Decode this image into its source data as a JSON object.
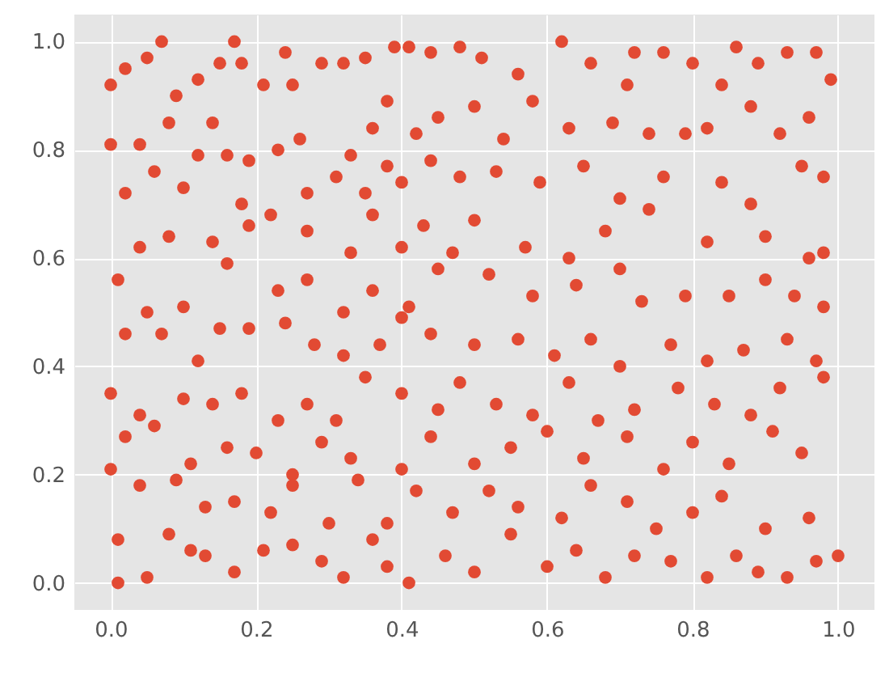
{
  "chart_data": {
    "type": "scatter",
    "color": "#e24a33",
    "marker": "circle",
    "grid": true,
    "xlim": [
      -0.05,
      1.05
    ],
    "xticks": [
      {
        "value": 0,
        "label": "0.0"
      },
      {
        "value": 0.2,
        "label": "0.2"
      },
      {
        "value": 0.4,
        "label": "0.4"
      },
      {
        "value": 0.6,
        "label": "0.6"
      },
      {
        "value": 0.8,
        "label": "0.8"
      },
      {
        "value": 1,
        "label": "1.0"
      }
    ],
    "ylim": [
      -0.05,
      1.05
    ],
    "yticks": [
      {
        "value": 0,
        "label": "0.0"
      },
      {
        "value": 0.2,
        "label": "0.2"
      },
      {
        "value": 0.4,
        "label": "0.4"
      },
      {
        "value": 0.6,
        "label": "0.6"
      },
      {
        "value": 0.8,
        "label": "0.8"
      },
      {
        "value": 1,
        "label": "1.0"
      }
    ],
    "x": [
      0.0,
      0.02,
      0.05,
      0.07,
      0.09,
      0.12,
      0.15,
      0.17,
      0.18,
      0.21,
      0.24,
      0.25,
      0.29,
      0.32,
      0.35,
      0.39,
      0.41,
      0.44,
      0.48,
      0.51,
      0.56,
      0.62,
      0.66,
      0.72,
      0.76,
      0.8,
      0.86,
      0.89,
      0.93,
      0.97,
      0.99,
      0.84,
      0.71,
      0.0,
      0.04,
      0.08,
      0.12,
      0.14,
      0.16,
      0.19,
      0.23,
      0.26,
      0.33,
      0.36,
      0.38,
      0.42,
      0.45,
      0.5,
      0.54,
      0.58,
      0.63,
      0.69,
      0.74,
      0.79,
      0.82,
      0.88,
      0.92,
      0.96,
      0.02,
      0.06,
      0.1,
      0.18,
      0.22,
      0.27,
      0.31,
      0.35,
      0.38,
      0.4,
      0.44,
      0.48,
      0.53,
      0.59,
      0.65,
      0.7,
      0.76,
      0.84,
      0.88,
      0.95,
      0.98,
      0.04,
      0.08,
      0.14,
      0.19,
      0.27,
      0.33,
      0.36,
      0.4,
      0.43,
      0.47,
      0.5,
      0.57,
      0.63,
      0.68,
      0.74,
      0.82,
      0.9,
      0.96,
      0.98,
      0.01,
      0.05,
      0.1,
      0.16,
      0.23,
      0.27,
      0.32,
      0.36,
      0.41,
      0.45,
      0.52,
      0.58,
      0.64,
      0.7,
      0.73,
      0.79,
      0.85,
      0.9,
      0.94,
      0.98,
      0.02,
      0.07,
      0.12,
      0.15,
      0.19,
      0.24,
      0.28,
      0.32,
      0.37,
      0.4,
      0.44,
      0.5,
      0.56,
      0.61,
      0.66,
      0.7,
      0.77,
      0.82,
      0.87,
      0.93,
      0.97,
      0.0,
      0.04,
      0.1,
      0.14,
      0.18,
      0.23,
      0.27,
      0.31,
      0.35,
      0.4,
      0.45,
      0.48,
      0.53,
      0.58,
      0.63,
      0.67,
      0.72,
      0.78,
      0.83,
      0.88,
      0.92,
      0.98,
      0.02,
      0.06,
      0.11,
      0.16,
      0.2,
      0.25,
      0.29,
      0.33,
      0.4,
      0.44,
      0.5,
      0.55,
      0.6,
      0.65,
      0.71,
      0.76,
      0.8,
      0.85,
      0.91,
      0.95,
      0.0,
      0.04,
      0.09,
      0.13,
      0.17,
      0.22,
      0.25,
      0.3,
      0.34,
      0.38,
      0.42,
      0.47,
      0.52,
      0.56,
      0.62,
      0.66,
      0.71,
      0.75,
      0.8,
      0.84,
      0.9,
      0.96,
      0.01,
      0.01,
      0.05,
      0.08,
      0.11,
      0.13,
      0.17,
      0.21,
      0.25,
      0.29,
      0.32,
      0.36,
      0.38,
      0.41,
      0.46,
      0.5,
      0.55,
      0.6,
      0.64,
      0.68,
      0.72,
      0.77,
      0.82,
      0.86,
      0.89,
      0.93,
      0.97,
      1.0
    ],
    "values": [
      0.92,
      0.95,
      0.97,
      1.0,
      0.9,
      0.93,
      0.96,
      1.0,
      0.96,
      0.92,
      0.98,
      0.92,
      0.96,
      0.96,
      0.97,
      0.99,
      0.99,
      0.98,
      0.99,
      0.97,
      0.94,
      1.0,
      0.96,
      0.98,
      0.98,
      0.96,
      0.99,
      0.96,
      0.98,
      0.98,
      0.93,
      0.92,
      0.92,
      0.81,
      0.81,
      0.85,
      0.79,
      0.85,
      0.79,
      0.78,
      0.8,
      0.82,
      0.79,
      0.84,
      0.89,
      0.83,
      0.86,
      0.88,
      0.82,
      0.89,
      0.84,
      0.85,
      0.83,
      0.83,
      0.84,
      0.88,
      0.83,
      0.86,
      0.72,
      0.76,
      0.73,
      0.7,
      0.68,
      0.72,
      0.75,
      0.72,
      0.77,
      0.74,
      0.78,
      0.75,
      0.76,
      0.74,
      0.77,
      0.71,
      0.75,
      0.74,
      0.7,
      0.77,
      0.75,
      0.62,
      0.64,
      0.63,
      0.66,
      0.65,
      0.61,
      0.68,
      0.62,
      0.66,
      0.61,
      0.67,
      0.62,
      0.6,
      0.65,
      0.69,
      0.63,
      0.64,
      0.6,
      0.61,
      0.56,
      0.5,
      0.51,
      0.59,
      0.54,
      0.56,
      0.5,
      0.54,
      0.51,
      0.58,
      0.57,
      0.53,
      0.55,
      0.58,
      0.52,
      0.53,
      0.53,
      0.56,
      0.53,
      0.51,
      0.46,
      0.46,
      0.41,
      0.47,
      0.47,
      0.48,
      0.44,
      0.42,
      0.44,
      0.49,
      0.46,
      0.44,
      0.45,
      0.42,
      0.45,
      0.4,
      0.44,
      0.41,
      0.43,
      0.45,
      0.41,
      0.35,
      0.31,
      0.34,
      0.33,
      0.35,
      0.3,
      0.33,
      0.3,
      0.38,
      0.35,
      0.32,
      0.37,
      0.33,
      0.31,
      0.37,
      0.3,
      0.32,
      0.36,
      0.33,
      0.31,
      0.36,
      0.38,
      0.27,
      0.29,
      0.22,
      0.25,
      0.24,
      0.2,
      0.26,
      0.23,
      0.21,
      0.27,
      0.22,
      0.25,
      0.28,
      0.23,
      0.27,
      0.21,
      0.26,
      0.22,
      0.28,
      0.24,
      0.21,
      0.18,
      0.19,
      0.14,
      0.15,
      0.13,
      0.18,
      0.11,
      0.19,
      0.11,
      0.17,
      0.13,
      0.17,
      0.14,
      0.12,
      0.18,
      0.15,
      0.1,
      0.13,
      0.16,
      0.1,
      0.12,
      0.08,
      0.0,
      0.01,
      0.09,
      0.06,
      0.05,
      0.02,
      0.06,
      0.07,
      0.04,
      0.01,
      0.08,
      0.03,
      0.0,
      0.05,
      0.02,
      0.09,
      0.03,
      0.06,
      0.01,
      0.05,
      0.04,
      0.01,
      0.05,
      0.02,
      0.01,
      0.04,
      0.05
    ]
  }
}
